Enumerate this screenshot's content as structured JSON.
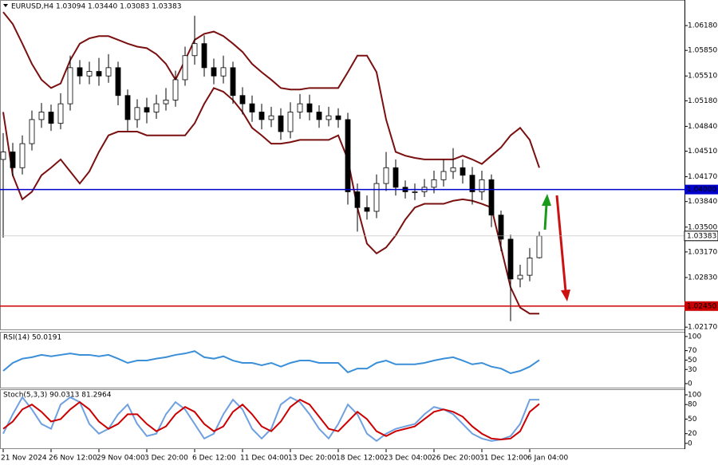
{
  "chart_data": [
    {
      "type": "candlestick",
      "title": "EURUSD,H4  1.03094 1.03440 1.03083 1.03383",
      "x": [
        "21 Nov 2024",
        null,
        null,
        null,
        null,
        "26 Nov 12:00",
        null,
        null,
        null,
        null,
        "29 Nov 04:00",
        null,
        null,
        null,
        null,
        "3 Dec 20:00",
        null,
        null,
        null,
        null,
        "6 Dec 12:00",
        null,
        null,
        null,
        null,
        "11 Dec 04:00",
        null,
        null,
        null,
        null,
        "13 Dec 20:00",
        null,
        null,
        null,
        null,
        "18 Dec 12:00",
        null,
        null,
        null,
        null,
        "23 Dec 04:00",
        null,
        null,
        null,
        null,
        "26 Dec 20:00",
        null,
        null,
        null,
        null,
        "31 Dec 12:00",
        null,
        null,
        null,
        null,
        "6 Jan 04:00",
        null
      ],
      "open": [
        1.044,
        1.045,
        1.0429,
        1.0461,
        1.0493,
        1.0503,
        1.0488,
        1.0514,
        1.0562,
        1.0551,
        1.0557,
        1.0551,
        1.0562,
        1.0525,
        1.0493,
        1.0509,
        1.0503,
        1.0514,
        1.0519,
        1.0546,
        1.0578,
        1.0594,
        1.0562,
        1.0551,
        1.0562,
        1.0525,
        1.0514,
        1.0503,
        1.0493,
        1.0498,
        1.0477,
        1.0503,
        1.0514,
        1.0503,
        1.0493,
        1.0498,
        1.0493,
        1.0397,
        1.0376,
        1.0371,
        1.0408,
        1.0429,
        1.0403,
        1.0397,
        1.0397,
        1.0403,
        1.0413,
        1.0424,
        1.0429,
        1.0419,
        1.0397,
        1.0413,
        1.0366,
        1.0334,
        1.0281,
        1.0286,
        1.03094
      ],
      "high": [
        1.0475,
        1.0462,
        1.0472,
        1.0505,
        1.0515,
        1.0513,
        1.0528,
        1.0578,
        1.0572,
        1.057,
        1.0575,
        1.058,
        1.057,
        1.0533,
        1.052,
        1.0522,
        1.0526,
        1.0535,
        1.0558,
        1.059,
        1.0631,
        1.0605,
        1.0574,
        1.0578,
        1.057,
        1.0536,
        1.0525,
        1.0514,
        1.051,
        1.0508,
        1.0516,
        1.0527,
        1.0526,
        1.0512,
        1.051,
        1.0508,
        1.0502,
        1.0408,
        1.0392,
        1.042,
        1.045,
        1.044,
        1.0412,
        1.0408,
        1.0414,
        1.0425,
        1.044,
        1.0455,
        1.044,
        1.043,
        1.0425,
        1.042,
        1.0372,
        1.034,
        1.03,
        1.0322,
        1.0344
      ],
      "low": [
        1.0336,
        1.0418,
        1.042,
        1.0452,
        1.0482,
        1.0478,
        1.048,
        1.0505,
        1.054,
        1.054,
        1.0538,
        1.0542,
        1.0512,
        1.0478,
        1.0482,
        1.0488,
        1.0494,
        1.0505,
        1.051,
        1.0538,
        1.0566,
        1.055,
        1.054,
        1.0541,
        1.0514,
        1.05,
        1.049,
        1.048,
        1.0483,
        1.0466,
        1.0468,
        1.0494,
        1.0492,
        1.0482,
        1.0484,
        1.0482,
        1.038,
        1.0344,
        1.036,
        1.0362,
        1.0398,
        1.0392,
        1.0388,
        1.0386,
        1.039,
        1.0395,
        1.0404,
        1.0414,
        1.0408,
        1.038,
        1.0386,
        1.035,
        1.0318,
        1.0225,
        1.027,
        1.0278,
        1.03083
      ],
      "close": [
        1.045,
        1.0429,
        1.0461,
        1.0493,
        1.0503,
        1.0488,
        1.0514,
        1.0562,
        1.0551,
        1.0557,
        1.0551,
        1.0562,
        1.0525,
        1.0493,
        1.0509,
        1.0503,
        1.0514,
        1.0519,
        1.0546,
        1.0578,
        1.0594,
        1.0562,
        1.0551,
        1.0562,
        1.0525,
        1.0514,
        1.0503,
        1.0493,
        1.0498,
        1.0477,
        1.0503,
        1.0514,
        1.0503,
        1.0493,
        1.0498,
        1.0493,
        1.0397,
        1.0376,
        1.0371,
        1.0408,
        1.0429,
        1.0403,
        1.0397,
        1.0397,
        1.0403,
        1.0413,
        1.0424,
        1.0429,
        1.0419,
        1.0397,
        1.0413,
        1.0366,
        1.0334,
        1.0281,
        1.0286,
        1.0309,
        1.03383
      ],
      "series": [
        {
          "color": "#7a1010",
          "values": [
            1.0636,
            1.062,
            1.0594,
            1.0567,
            1.0546,
            1.0535,
            1.0541,
            1.0572,
            1.0594,
            1.0601,
            1.0604,
            1.0604,
            1.0599,
            1.0594,
            1.059,
            1.0588,
            1.058,
            1.0567,
            1.0546,
            1.0572,
            1.0599,
            1.0607,
            1.061,
            1.0604,
            1.0594,
            1.0583,
            1.0567,
            1.0556,
            1.0546,
            1.0535,
            1.0533,
            1.0533,
            1.0535,
            1.0535,
            1.0535,
            1.0535,
            1.0556,
            1.0578,
            1.0578,
            1.0556,
            1.0493,
            1.045,
            1.0445,
            1.0442,
            1.044,
            1.044,
            1.044,
            1.044,
            1.0445,
            1.044,
            1.0434,
            1.0445,
            1.0456,
            1.0472,
            1.0482,
            1.0466,
            1.0429
          ]
        },
        {
          "color": "#7a1010",
          "values": [
            1.0503,
            1.0419,
            1.0387,
            1.0397,
            1.0419,
            1.0429,
            1.044,
            1.0424,
            1.0408,
            1.0424,
            1.045,
            1.0472,
            1.0477,
            1.0477,
            1.0477,
            1.0472,
            1.0472,
            1.0472,
            1.0472,
            1.0472,
            1.0488,
            1.0514,
            1.0535,
            1.053,
            1.0519,
            1.0503,
            1.0482,
            1.0472,
            1.0461,
            1.0461,
            1.0463,
            1.0466,
            1.0466,
            1.0466,
            1.0466,
            1.0472,
            1.044,
            1.0376,
            1.0328,
            1.0315,
            1.0323,
            1.0339,
            1.036,
            1.0376,
            1.0381,
            1.0381,
            1.0381,
            1.0385,
            1.0387,
            1.0385,
            1.0381,
            1.0376,
            1.0323,
            1.027,
            1.0243,
            1.0235,
            1.0235
          ]
        }
      ],
      "hlines": [
        {
          "value": 1.04,
          "label": "1.04000",
          "color": "#0000cc"
        },
        {
          "value": 1.0245,
          "label": "1.02450",
          "color": "#cc0000"
        }
      ],
      "last_price": {
        "value": 1.03383,
        "label": "1.03383"
      },
      "ylim": [
        1.0214,
        1.0652
      ],
      "yticks": [
        {
          "value": 1.0618,
          "label": "1.06180"
        },
        {
          "value": 1.0585,
          "label": "1.05850"
        },
        {
          "value": 1.0551,
          "label": "1.05510"
        },
        {
          "value": 1.0518,
          "label": "1.05180"
        },
        {
          "value": 1.0484,
          "label": "1.04840"
        },
        {
          "value": 1.0451,
          "label": "1.04510"
        },
        {
          "value": 1.0417,
          "label": "1.04170"
        },
        {
          "value": 1.0384,
          "label": "1.03840"
        },
        {
          "value": 1.035,
          "label": "1.03500"
        },
        {
          "value": 1.0317,
          "label": "1.03170"
        },
        {
          "value": 1.0283,
          "label": "1.02830"
        },
        {
          "value": 1.0217,
          "label": "1.02170"
        }
      ],
      "grid": false
    },
    {
      "type": "line",
      "title": "RSI(14) 50.0191",
      "series": [
        {
          "color": "#3a8fd8",
          "values": [
            27,
            44,
            53,
            56,
            61,
            58,
            61,
            64,
            61,
            61,
            58,
            61,
            53,
            44,
            49,
            49,
            53,
            56,
            61,
            64,
            69,
            56,
            53,
            58,
            49,
            44,
            44,
            39,
            44,
            36,
            44,
            49,
            49,
            44,
            44,
            44,
            24,
            32,
            32,
            44,
            49,
            41,
            41,
            41,
            44,
            49,
            53,
            56,
            49,
            41,
            44,
            36,
            32,
            22,
            27,
            36,
            50.0191
          ]
        }
      ],
      "ylim": [
        -8.5,
        110
      ],
      "yticks": [
        100,
        70,
        50,
        30,
        0
      ],
      "grid": false
    },
    {
      "type": "line",
      "title": "Stoch(5,3,3) 90.0313 81.2964",
      "series": [
        {
          "color": "#6fa0e0",
          "values": [
            20,
            60,
            95,
            70,
            40,
            30,
            80,
            95,
            85,
            40,
            20,
            30,
            60,
            80,
            40,
            15,
            20,
            60,
            85,
            70,
            40,
            10,
            20,
            60,
            90,
            70,
            30,
            10,
            30,
            80,
            95,
            85,
            60,
            30,
            10,
            40,
            80,
            60,
            20,
            5,
            20,
            30,
            35,
            40,
            60,
            75,
            70,
            60,
            40,
            20,
            10,
            5,
            8,
            15,
            40,
            90,
            90.0313
          ]
        },
        {
          "color": "#cc0000",
          "values": [
            30,
            45,
            70,
            80,
            65,
            45,
            50,
            70,
            85,
            70,
            45,
            30,
            40,
            60,
            60,
            40,
            25,
            35,
            60,
            75,
            65,
            40,
            25,
            35,
            65,
            80,
            60,
            35,
            25,
            45,
            75,
            90,
            80,
            55,
            30,
            25,
            45,
            65,
            50,
            25,
            15,
            25,
            30,
            35,
            50,
            65,
            70,
            65,
            55,
            35,
            20,
            10,
            8,
            10,
            25,
            65,
            81.2964
          ]
        }
      ],
      "ylim": [
        -10,
        111.5
      ],
      "yticks": [
        100,
        80,
        50,
        20,
        0
      ],
      "grid": false
    }
  ]
}
